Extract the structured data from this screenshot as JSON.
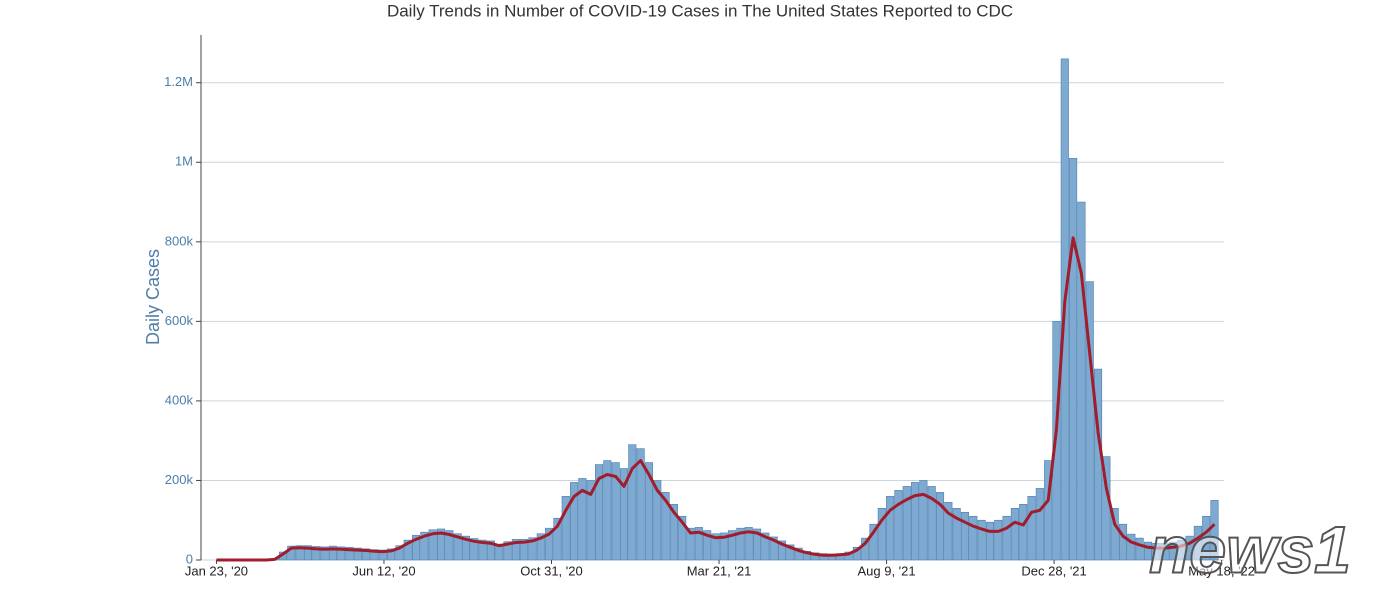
{
  "chart_data": {
    "type": "bar",
    "title": "Daily Trends in Number of COVID-19 Cases in The United States Reported to CDC",
    "y_label": "Daily Cases",
    "watermark": "news1",
    "x": [
      "2020-01-23",
      "2020-01-30",
      "2020-02-06",
      "2020-02-13",
      "2020-02-20",
      "2020-02-27",
      "2020-03-05",
      "2020-03-12",
      "2020-03-19",
      "2020-03-26",
      "2020-04-02",
      "2020-04-09",
      "2020-04-16",
      "2020-04-23",
      "2020-04-30",
      "2020-05-07",
      "2020-05-14",
      "2020-05-21",
      "2020-05-28",
      "2020-06-04",
      "2020-06-11",
      "2020-06-18",
      "2020-06-25",
      "2020-07-02",
      "2020-07-09",
      "2020-07-16",
      "2020-07-23",
      "2020-07-30",
      "2020-08-06",
      "2020-08-13",
      "2020-08-20",
      "2020-08-27",
      "2020-09-03",
      "2020-09-10",
      "2020-09-17",
      "2020-09-24",
      "2020-10-01",
      "2020-10-08",
      "2020-10-15",
      "2020-10-22",
      "2020-10-29",
      "2020-11-05",
      "2020-11-12",
      "2020-11-19",
      "2020-11-26",
      "2020-12-03",
      "2020-12-10",
      "2020-12-17",
      "2020-12-24",
      "2020-12-31",
      "2021-01-07",
      "2021-01-14",
      "2021-01-21",
      "2021-01-28",
      "2021-02-04",
      "2021-02-11",
      "2021-02-18",
      "2021-02-25",
      "2021-03-04",
      "2021-03-11",
      "2021-03-18",
      "2021-03-25",
      "2021-04-01",
      "2021-04-08",
      "2021-04-15",
      "2021-04-22",
      "2021-04-29",
      "2021-05-06",
      "2021-05-13",
      "2021-05-20",
      "2021-05-27",
      "2021-06-03",
      "2021-06-10",
      "2021-06-17",
      "2021-06-24",
      "2021-07-01",
      "2021-07-08",
      "2021-07-15",
      "2021-07-22",
      "2021-07-29",
      "2021-08-05",
      "2021-08-12",
      "2021-08-19",
      "2021-08-26",
      "2021-09-02",
      "2021-09-09",
      "2021-09-16",
      "2021-09-23",
      "2021-09-30",
      "2021-10-07",
      "2021-10-14",
      "2021-10-21",
      "2021-10-28",
      "2021-11-04",
      "2021-11-11",
      "2021-11-18",
      "2021-11-25",
      "2021-12-02",
      "2021-12-09",
      "2021-12-16",
      "2021-12-23",
      "2021-12-30",
      "2022-01-06",
      "2022-01-13",
      "2022-01-20",
      "2022-01-27",
      "2022-02-03",
      "2022-02-10",
      "2022-02-17",
      "2022-02-24",
      "2022-03-03",
      "2022-03-10",
      "2022-03-17",
      "2022-03-24",
      "2022-03-31",
      "2022-04-07",
      "2022-04-14",
      "2022-04-21",
      "2022-04-28",
      "2022-05-05",
      "2022-05-12"
    ],
    "series": [
      {
        "type": "bar",
        "color": "#7ea9d1",
        "values": [
          0,
          0,
          0,
          0,
          0,
          0,
          300,
          3000,
          20000,
          35000,
          36000,
          36000,
          34000,
          33000,
          35000,
          33000,
          32000,
          30000,
          28000,
          26000,
          25000,
          28000,
          36000,
          50000,
          62000,
          70000,
          76000,
          78000,
          74000,
          66000,
          60000,
          54000,
          50000,
          48000,
          40000,
          46000,
          52000,
          52000,
          56000,
          66000,
          80000,
          105000,
          160000,
          195000,
          205000,
          200000,
          240000,
          250000,
          245000,
          230000,
          290000,
          280000,
          245000,
          200000,
          170000,
          140000,
          110000,
          80000,
          82000,
          74000,
          66000,
          68000,
          74000,
          80000,
          82000,
          78000,
          68000,
          58000,
          48000,
          38000,
          30000,
          22000,
          18000,
          16000,
          15000,
          16000,
          20000,
          32000,
          55000,
          90000,
          130000,
          160000,
          175000,
          185000,
          195000,
          200000,
          185000,
          170000,
          145000,
          130000,
          120000,
          110000,
          100000,
          95000,
          100000,
          110000,
          130000,
          140000,
          160000,
          180000,
          250000,
          600000,
          1260000,
          1010000,
          900000,
          700000,
          480000,
          260000,
          130000,
          90000,
          65000,
          55000,
          45000,
          42000,
          42000,
          45000,
          50000,
          60000,
          85000,
          110000,
          150000
        ]
      },
      {
        "type": "line",
        "color": "#a11d2b",
        "values": [
          0,
          0,
          0,
          0,
          0,
          0,
          100,
          1500,
          15000,
          30000,
          31000,
          30000,
          28000,
          27000,
          28000,
          27000,
          26000,
          25000,
          24000,
          22000,
          21000,
          23000,
          30000,
          42000,
          52000,
          60000,
          66000,
          68000,
          64000,
          58000,
          52000,
          47000,
          44000,
          42000,
          36000,
          40000,
          44000,
          45000,
          48000,
          55000,
          65000,
          85000,
          125000,
          160000,
          175000,
          165000,
          205000,
          215000,
          210000,
          185000,
          230000,
          250000,
          215000,
          175000,
          150000,
          120000,
          95000,
          68000,
          70000,
          62000,
          56000,
          57000,
          62000,
          68000,
          71000,
          68000,
          58000,
          50000,
          40000,
          32000,
          24000,
          18000,
          14000,
          12000,
          12000,
          13000,
          15000,
          25000,
          42000,
          70000,
          100000,
          125000,
          140000,
          152000,
          162000,
          165000,
          155000,
          140000,
          118000,
          105000,
          95000,
          85000,
          78000,
          72000,
          72000,
          80000,
          95000,
          88000,
          120000,
          125000,
          150000,
          330000,
          650000,
          810000,
          720000,
          520000,
          320000,
          180000,
          90000,
          60000,
          45000,
          38000,
          32000,
          30000,
          30000,
          32000,
          35000,
          42000,
          55000,
          70000,
          90000
        ]
      }
    ],
    "xlim": [
      "2020-01-10",
      "2022-05-20"
    ],
    "xticks": [
      {
        "value": "2020-01-23",
        "label": "Jan 23, '20"
      },
      {
        "value": "2020-06-12",
        "label": "Jun 12, '20"
      },
      {
        "value": "2020-10-31",
        "label": "Oct 31, '20"
      },
      {
        "value": "2021-03-21",
        "label": "Mar 21, '21"
      },
      {
        "value": "2021-08-09",
        "label": "Aug 9, '21"
      },
      {
        "value": "2021-12-28",
        "label": "Dec 28, '21"
      },
      {
        "value": "2022-05-18",
        "label": "May 18, '22"
      }
    ],
    "ylim": [
      0,
      1320000
    ],
    "yticks": [
      0,
      {
        "value": 200000,
        "label": "200k"
      },
      {
        "value": 400000,
        "label": "400k"
      },
      {
        "value": 600000,
        "label": "600k"
      },
      {
        "value": 800000,
        "label": "800k"
      },
      {
        "value": 1000000,
        "label": "1M"
      },
      {
        "value": 1200000,
        "label": "1.2M"
      }
    ],
    "grid": true
  }
}
